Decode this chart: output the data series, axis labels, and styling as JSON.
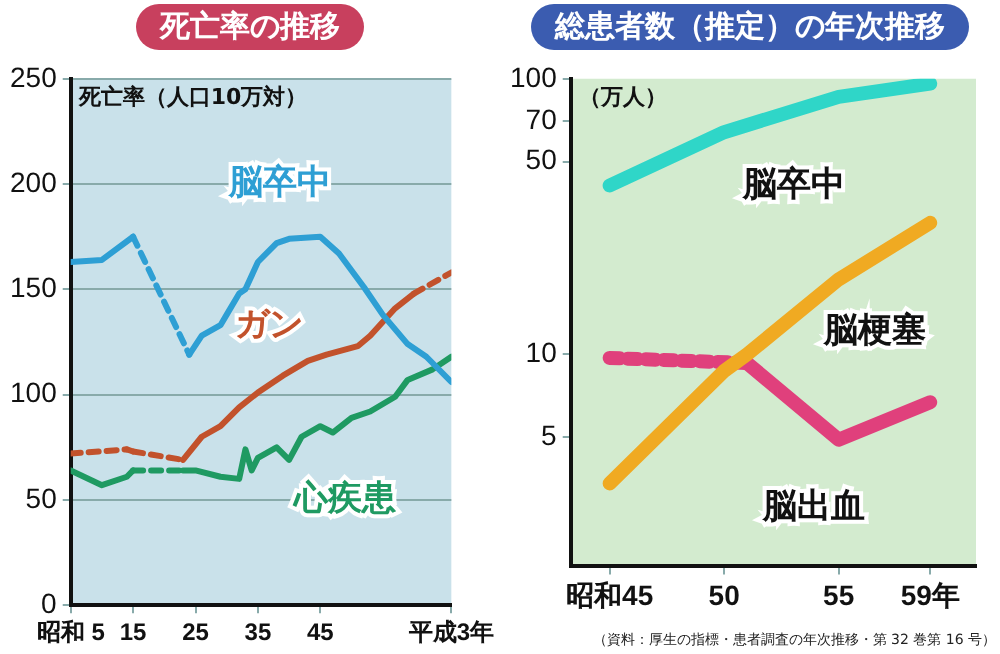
{
  "chart_data": [
    {
      "type": "line",
      "title": "死亡率の推移",
      "ylabel": "死亡率（人口10万対）",
      "xlim": [
        5,
        66
      ],
      "xticks": [
        {
          "value": 5,
          "label": "昭和 5"
        },
        15,
        25,
        35,
        45,
        {
          "value": 66,
          "label": "平成3年"
        }
      ],
      "ylim": [
        0,
        250
      ],
      "yticks": [
        0,
        50,
        100,
        150,
        200,
        250
      ],
      "grid": "y",
      "legend": false,
      "series": [
        {
          "name": "脳卒中",
          "color": "#2e9fd4",
          "x": [
            5,
            10,
            15,
            24,
            26,
            29,
            30,
            32,
            33,
            35,
            38,
            40,
            45,
            48,
            52,
            55,
            59,
            62,
            66
          ],
          "values": [
            163,
            164,
            175,
            119,
            128,
            133,
            138,
            148,
            150,
            163,
            172,
            174,
            175,
            167,
            151,
            138,
            124,
            118,
            106
          ]
        },
        {
          "name": "ガン",
          "color": "#c2522c",
          "x": [
            5,
            14,
            15,
            23,
            26,
            29,
            32,
            35,
            39,
            43,
            46,
            51,
            53,
            57,
            60,
            66
          ],
          "values": [
            72,
            74,
            73,
            69,
            80,
            85,
            94,
            101,
            109,
            116,
            119,
            123,
            128,
            141,
            148,
            158
          ]
        },
        {
          "name": "心疾患",
          "color": "#1f9a62",
          "x": [
            5,
            10,
            14,
            15,
            23,
            25,
            29,
            32,
            33,
            34,
            35,
            38,
            40,
            42,
            45,
            47,
            50,
            53,
            57,
            59,
            63,
            66
          ],
          "values": [
            64,
            57,
            61,
            64,
            64,
            64,
            61,
            60,
            74,
            64,
            70,
            75,
            69,
            80,
            85,
            82,
            89,
            92,
            99,
            107,
            112,
            118
          ]
        }
      ]
    },
    {
      "type": "line",
      "title": "総患者数（推定）の年次推移",
      "ylabel": "（万人）",
      "log": "y",
      "xlim": [
        43.3,
        61
      ],
      "xticks": [
        {
          "value": 45,
          "label": "昭和45"
        },
        50,
        55,
        {
          "value": 59,
          "label": "59年"
        }
      ],
      "ylim": [
        1.7,
        100
      ],
      "yticks": [
        5,
        10,
        50,
        70,
        100
      ],
      "legend": false,
      "annotations": [
        "（資料：厚生の指標・患者調査の年次推移・第 32 巻第 16 号）"
      ],
      "series": [
        {
          "name": "脳卒中",
          "color": "#2fd6c8",
          "x": [
            45,
            50,
            55,
            59
          ],
          "values": [
            41,
            64,
            86,
            96
          ]
        },
        {
          "name": "脳梗塞",
          "color": "#f0aa22",
          "x": [
            45,
            50,
            51,
            55,
            59
          ],
          "values": [
            3.4,
            8.7,
            10,
            18.7,
            30
          ]
        },
        {
          "name": "脳出血",
          "color": "#e0407c",
          "x": [
            45,
            51,
            55,
            59
          ],
          "values": [
            9.7,
            9.3,
            4.9,
            6.7
          ]
        }
      ]
    }
  ]
}
